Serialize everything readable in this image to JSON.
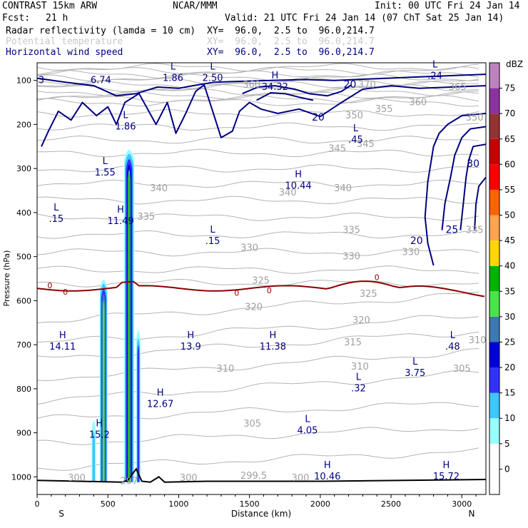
{
  "header": {
    "model": "CONTRAST 15km ARW",
    "center": "NCAR/MMM",
    "init": "Init: 00 UTC Fri 24 Jan 14",
    "fcst_label": "Fcst:",
    "fcst_value": "21 h",
    "valid": "Valid: 21 UTC Fri 24 Jan 14 (07 ChT Sat 25 Jan 14)",
    "fields": [
      {
        "name": "Radar reflectivity (lamda = 10 cm)",
        "xy": "XY=  96.0,  2.5 to  96.0,214.7",
        "color": "#000000"
      },
      {
        "name": "Potential temperature",
        "xy": "XY=  96.0,  2.5 to  96.0,214.7",
        "color": "#c8c8c8"
      },
      {
        "name": "Horizontal wind speed",
        "xy": "XY=  96.0,  2.5 to  96.0,214.7",
        "color": "#000080"
      }
    ]
  },
  "chart_data": {
    "type": "cross-section",
    "xlabel": "Distance (km)",
    "ylabel": "Pressure (hPa)",
    "xlim": [
      0,
      3170
    ],
    "ylim": [
      1040,
      60
    ],
    "x_ticks": [
      0,
      500,
      1000,
      1500,
      2000,
      2500,
      3000
    ],
    "y_ticks": [
      100,
      200,
      300,
      400,
      500,
      600,
      700,
      800,
      900,
      1000
    ],
    "x_end_labels": {
      "left": "S",
      "right": "N"
    },
    "colorbar": {
      "unit": "dBZ",
      "levels": [
        0,
        5,
        10,
        15,
        20,
        25,
        30,
        35,
        40,
        45,
        50,
        55,
        60,
        65,
        70,
        75
      ],
      "colors": [
        "#ffffff",
        "#ffffff",
        "#96ffff",
        "#3cc8ff",
        "#3232ff",
        "#0000dc",
        "#3c78b4",
        "#46e646",
        "#00b400",
        "#ffd700",
        "#ffa54f",
        "#ff6400",
        "#ff0000",
        "#c80000",
        "#963232",
        "#8c32a0",
        "#be82be"
      ]
    },
    "theta_labels": [
      {
        "x": 1515,
        "p": 110,
        "v": "360"
      },
      {
        "x": 2330,
        "p": 110,
        "v": "370"
      },
      {
        "x": 2970,
        "p": 115,
        "v": "365"
      },
      {
        "x": 2690,
        "p": 150,
        "v": "360"
      },
      {
        "x": 2450,
        "p": 165,
        "v": "355"
      },
      {
        "x": 2240,
        "p": 180,
        "v": "350"
      },
      {
        "x": 3090,
        "p": 185,
        "v": "350"
      },
      {
        "x": 2120,
        "p": 255,
        "v": "345"
      },
      {
        "x": 2320,
        "p": 245,
        "v": "345"
      },
      {
        "x": 1770,
        "p": 355,
        "v": "340"
      },
      {
        "x": 2160,
        "p": 345,
        "v": "340"
      },
      {
        "x": 860,
        "p": 345,
        "v": "340"
      },
      {
        "x": 770,
        "p": 410,
        "v": "335"
      },
      {
        "x": 2220,
        "p": 440,
        "v": "335"
      },
      {
        "x": 3090,
        "p": 440,
        "v": "335"
      },
      {
        "x": 1500,
        "p": 480,
        "v": "330"
      },
      {
        "x": 2220,
        "p": 500,
        "v": "330"
      },
      {
        "x": 2640,
        "p": 490,
        "v": "330"
      },
      {
        "x": 1580,
        "p": 555,
        "v": "325"
      },
      {
        "x": 2340,
        "p": 585,
        "v": "325"
      },
      {
        "x": 1530,
        "p": 615,
        "v": "320"
      },
      {
        "x": 2290,
        "p": 645,
        "v": "320"
      },
      {
        "x": 2230,
        "p": 695,
        "v": "315"
      },
      {
        "x": 3110,
        "p": 690,
        "v": "310"
      },
      {
        "x": 1330,
        "p": 755,
        "v": "310"
      },
      {
        "x": 2280,
        "p": 750,
        "v": "310"
      },
      {
        "x": 3000,
        "p": 755,
        "v": "305"
      },
      {
        "x": 1520,
        "p": 880,
        "v": "305"
      },
      {
        "x": 1530,
        "p": 998,
        "v": "299.5"
      },
      {
        "x": 280,
        "p": 1003,
        "v": "300"
      },
      {
        "x": 1070,
        "p": 1003,
        "v": "300"
      },
      {
        "x": 1860,
        "p": 1003,
        "v": "300"
      },
      {
        "x": 650,
        "p": 1010,
        "v": "297"
      }
    ],
    "wind_labels": [
      {
        "x": 2210,
        "p": 110,
        "v": "20"
      },
      {
        "x": 1985,
        "p": 185,
        "v": "20"
      },
      {
        "x": 3080,
        "p": 290,
        "v": "30"
      },
      {
        "x": 2930,
        "p": 440,
        "v": "25"
      },
      {
        "x": 2680,
        "p": 465,
        "v": "20"
      }
    ],
    "zero_labels": [
      {
        "x": 90,
        "p": 565,
        "v": "0"
      },
      {
        "x": 200,
        "p": 580,
        "v": "0"
      },
      {
        "x": 1410,
        "p": 582,
        "v": "0"
      },
      {
        "x": 1640,
        "p": 577,
        "v": "0"
      },
      {
        "x": 2400,
        "p": 547,
        "v": "0"
      }
    ],
    "extrema": [
      {
        "x": 30,
        "p": 90,
        "t": "",
        "v": "3"
      },
      {
        "x": 450,
        "p": 90,
        "t": "",
        "v": "6.74"
      },
      {
        "x": 960,
        "p": 85,
        "t": "L",
        "v": "1.86"
      },
      {
        "x": 1240,
        "p": 85,
        "t": "L",
        "v": "2.50"
      },
      {
        "x": 1680,
        "p": 105,
        "t": "H",
        "v": "34.32"
      },
      {
        "x": 2810,
        "p": 80,
        "t": "L",
        "v": ".24"
      },
      {
        "x": 625,
        "p": 195,
        "t": "L",
        "v": "1.86"
      },
      {
        "x": 480,
        "p": 300,
        "t": "L",
        "v": "1.55"
      },
      {
        "x": 2250,
        "p": 225,
        "t": "L",
        "v": ".45"
      },
      {
        "x": 1845,
        "p": 330,
        "t": "H",
        "v": "10.44"
      },
      {
        "x": 590,
        "p": 410,
        "t": "H",
        "v": "11.49"
      },
      {
        "x": 135,
        "p": 405,
        "t": "L",
        "v": ".15"
      },
      {
        "x": 1240,
        "p": 455,
        "t": "L",
        "v": ".15"
      },
      {
        "x": 180,
        "p": 695,
        "t": "H",
        "v": "14.11"
      },
      {
        "x": 1085,
        "p": 695,
        "t": "H",
        "v": "13.9"
      },
      {
        "x": 1665,
        "p": 695,
        "t": "H",
        "v": "11.38"
      },
      {
        "x": 2935,
        "p": 695,
        "t": "L",
        "v": ".48"
      },
      {
        "x": 2670,
        "p": 755,
        "t": "L",
        "v": "3.75"
      },
      {
        "x": 2270,
        "p": 790,
        "t": "L",
        "v": ".32"
      },
      {
        "x": 1910,
        "p": 885,
        "t": "L",
        "v": "4.05"
      },
      {
        "x": 440,
        "p": 895,
        "t": "H",
        "v": "15.2"
      },
      {
        "x": 870,
        "p": 825,
        "t": "H",
        "v": "12.67"
      },
      {
        "x": 2050,
        "p": 990,
        "t": "H",
        "v": "10.46"
      },
      {
        "x": 2890,
        "p": 990,
        "t": "H",
        "v": "15.72"
      }
    ]
  }
}
